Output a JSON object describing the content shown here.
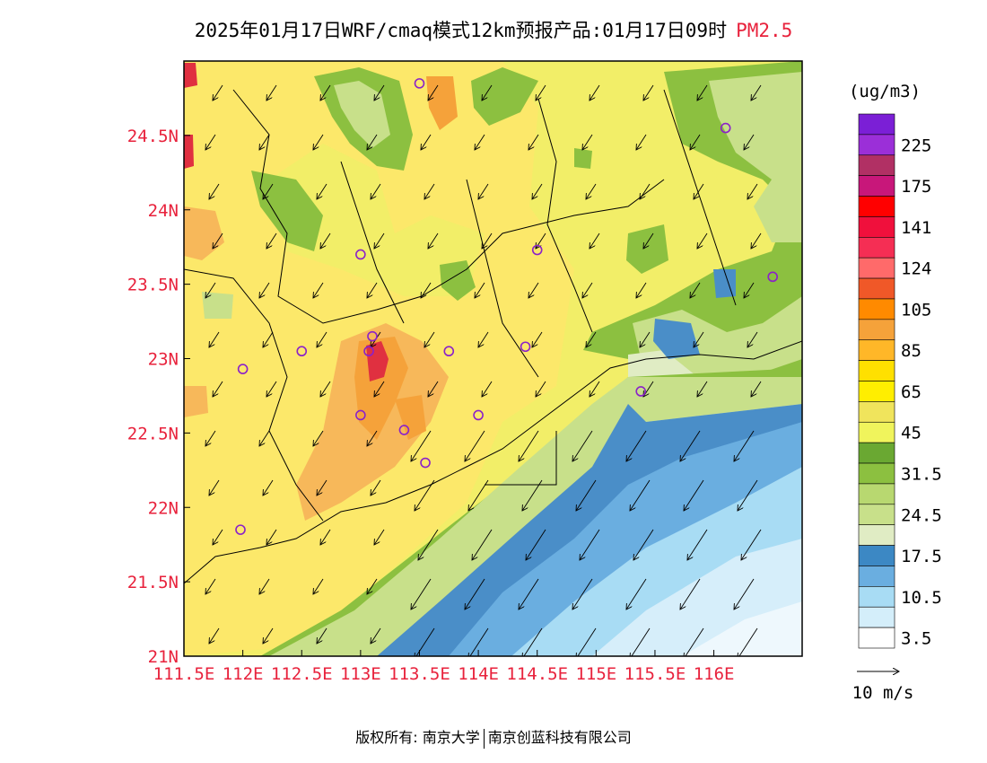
{
  "title": {
    "text": "2025年01月17日WRF/cmaq模式12km预报产品:01月17日09时",
    "variable": "PM2.5",
    "variable_color": "#e8223c"
  },
  "map": {
    "lon_range": [
      111.5,
      116.75
    ],
    "lat_range": [
      21.0,
      25.0
    ],
    "lat_ticks": [
      "21N",
      "21.5N",
      "22N",
      "22.5N",
      "23N",
      "23.5N",
      "24N",
      "24.5N"
    ],
    "lon_ticks": [
      "111.5E",
      "112E",
      "112.5E",
      "113E",
      "113.5E",
      "114E",
      "114.5E",
      "115E",
      "115.5E",
      "116E"
    ],
    "lat_values": [
      21.0,
      21.5,
      22.0,
      22.5,
      23.0,
      23.5,
      24.0,
      24.5
    ],
    "lon_values": [
      111.5,
      112.0,
      112.5,
      113.0,
      113.5,
      114.0,
      114.5,
      115.0,
      115.5,
      116.0
    ],
    "tick_color": "#e8223c",
    "wind_direction": "northeasterly",
    "city_marker_color": "#8b21c9"
  },
  "legend": {
    "unit": "(ug/m3)",
    "levels": [
      {
        "label": "",
        "color": "#7b1fd6"
      },
      {
        "label": "225",
        "color": "#9b2fd8"
      },
      {
        "label": "",
        "color": "#b13064"
      },
      {
        "label": "175",
        "color": "#c8177a"
      },
      {
        "label": "",
        "color": "#ff0000"
      },
      {
        "label": "141",
        "color": "#f0103c"
      },
      {
        "label": "",
        "color": "#f52e54"
      },
      {
        "label": "124",
        "color": "#ff6a6a"
      },
      {
        "label": "",
        "color": "#f05828"
      },
      {
        "label": "105",
        "color": "#ff8a00"
      },
      {
        "label": "",
        "color": "#f5a23a"
      },
      {
        "label": "85",
        "color": "#ffb728"
      },
      {
        "label": "",
        "color": "#ffe000"
      },
      {
        "label": "65",
        "color": "#ffee00"
      },
      {
        "label": "",
        "color": "#f0e45c"
      },
      {
        "label": "45",
        "color": "#f0f45c"
      },
      {
        "label": "",
        "color": "#6aa832"
      },
      {
        "label": "31.5",
        "color": "#8cc040"
      },
      {
        "label": "",
        "color": "#b8d870"
      },
      {
        "label": "24.5",
        "color": "#c8e08a"
      },
      {
        "label": "",
        "color": "#e0ecc4"
      },
      {
        "label": "17.5",
        "color": "#3c88c4"
      },
      {
        "label": "",
        "color": "#6aaee0"
      },
      {
        "label": "10.5",
        "color": "#a8dcf4"
      },
      {
        "label": "",
        "color": "#d4eefa"
      },
      {
        "label": "3.5",
        "color": "#ffffff"
      }
    ],
    "wind_ref": "10 m/s"
  },
  "colors": {
    "yellow_light": "#f2ee68",
    "yellow": "#fce86a",
    "gold": "#fad24a",
    "orange_light": "#f7b85a",
    "orange": "#f5a23a",
    "red": "#e03040",
    "green_dark": "#6aa832",
    "green": "#8cc040",
    "green_light": "#c8e08a",
    "green_pale": "#e0ecc4",
    "blue_dark": "#4a8ec8",
    "blue": "#6aaee0",
    "blue_light": "#a8dcf4",
    "blue_pale": "#d6eefa"
  },
  "footer": {
    "left": "版权所有: 南京大学",
    "right": "南京创蓝科技有限公司"
  }
}
